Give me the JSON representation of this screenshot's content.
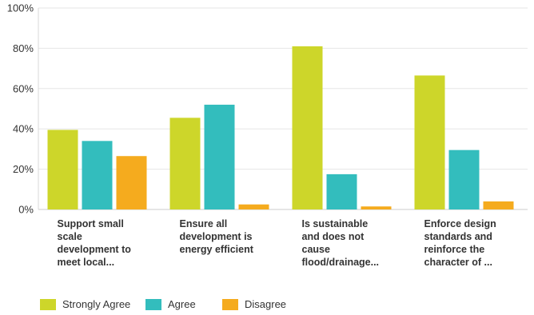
{
  "chart_data": {
    "type": "bar",
    "categories": [
      [
        "Support small",
        "scale",
        "development to",
        "meet local..."
      ],
      [
        "Ensure all",
        "development is",
        "energy efficient"
      ],
      [
        "Is sustainable",
        "and does not",
        "cause",
        "flood/drainage..."
      ],
      [
        "Enforce design",
        "standards and",
        "reinforce the",
        "character of ..."
      ]
    ],
    "series": [
      {
        "name": "Strongly Agree",
        "color": "#cdd62a",
        "values": [
          39.5,
          45.5,
          81,
          66.5
        ]
      },
      {
        "name": "Agree",
        "color": "#33bdbd",
        "values": [
          34,
          52,
          17.5,
          29.5
        ]
      },
      {
        "name": "Disagree",
        "color": "#f5ab1e",
        "values": [
          26.5,
          2.5,
          1.5,
          4
        ]
      }
    ],
    "y_ticks": [
      "0%",
      "20%",
      "40%",
      "60%",
      "80%",
      "100%"
    ],
    "ylim": [
      0,
      100
    ],
    "grid": true,
    "legend_position": "bottom-left"
  }
}
